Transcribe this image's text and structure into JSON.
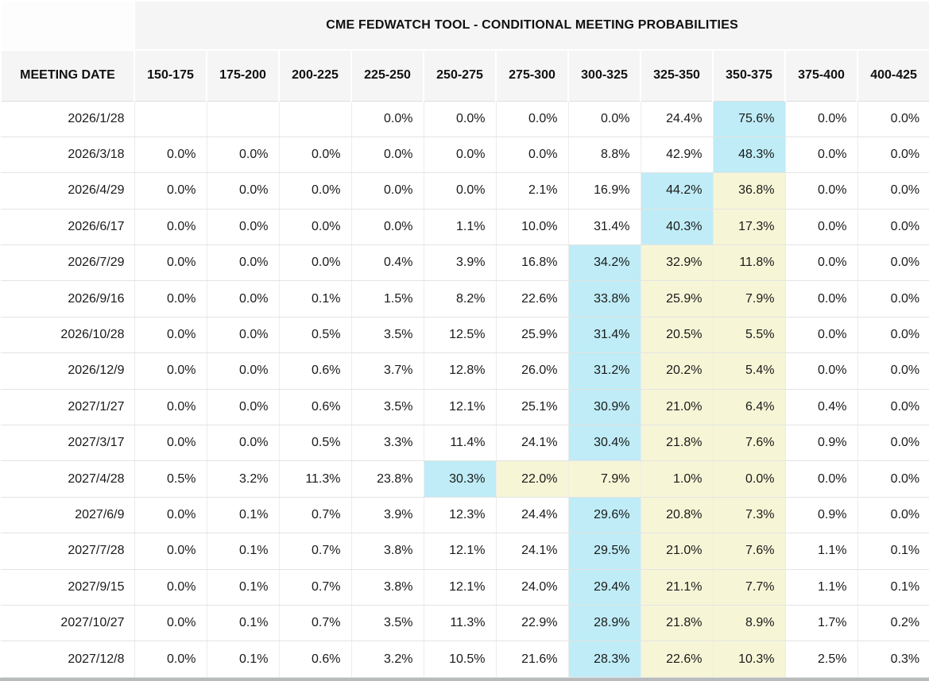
{
  "chart_data": {
    "type": "table",
    "title": "CME FEDWATCH TOOL - CONDITIONAL MEETING PROBABILITIES",
    "row_header": "MEETING DATE",
    "columns": [
      "150-175",
      "175-200",
      "200-225",
      "225-250",
      "250-275",
      "275-300",
      "300-325",
      "325-350",
      "350-375",
      "375-400",
      "400-425"
    ],
    "rows": [
      {
        "date": "2026/1/28",
        "values": [
          "",
          "",
          "",
          "0.0%",
          "0.0%",
          "0.0%",
          "0.0%",
          "24.4%",
          "75.6%",
          "0.0%",
          "0.0%"
        ],
        "cyan": [
          8
        ],
        "yellow": []
      },
      {
        "date": "2026/3/18",
        "values": [
          "0.0%",
          "0.0%",
          "0.0%",
          "0.0%",
          "0.0%",
          "0.0%",
          "8.8%",
          "42.9%",
          "48.3%",
          "0.0%",
          "0.0%"
        ],
        "cyan": [
          8
        ],
        "yellow": []
      },
      {
        "date": "2026/4/29",
        "values": [
          "0.0%",
          "0.0%",
          "0.0%",
          "0.0%",
          "0.0%",
          "2.1%",
          "16.9%",
          "44.2%",
          "36.8%",
          "0.0%",
          "0.0%"
        ],
        "cyan": [
          7
        ],
        "yellow": [
          8
        ]
      },
      {
        "date": "2026/6/17",
        "values": [
          "0.0%",
          "0.0%",
          "0.0%",
          "0.0%",
          "1.1%",
          "10.0%",
          "31.4%",
          "40.3%",
          "17.3%",
          "0.0%",
          "0.0%"
        ],
        "cyan": [
          7
        ],
        "yellow": [
          8
        ]
      },
      {
        "date": "2026/7/29",
        "values": [
          "0.0%",
          "0.0%",
          "0.0%",
          "0.4%",
          "3.9%",
          "16.8%",
          "34.2%",
          "32.9%",
          "11.8%",
          "0.0%",
          "0.0%"
        ],
        "cyan": [
          6
        ],
        "yellow": [
          7,
          8
        ]
      },
      {
        "date": "2026/9/16",
        "values": [
          "0.0%",
          "0.0%",
          "0.1%",
          "1.5%",
          "8.2%",
          "22.6%",
          "33.8%",
          "25.9%",
          "7.9%",
          "0.0%",
          "0.0%"
        ],
        "cyan": [
          6
        ],
        "yellow": [
          7,
          8
        ]
      },
      {
        "date": "2026/10/28",
        "values": [
          "0.0%",
          "0.0%",
          "0.5%",
          "3.5%",
          "12.5%",
          "25.9%",
          "31.4%",
          "20.5%",
          "5.5%",
          "0.0%",
          "0.0%"
        ],
        "cyan": [
          6
        ],
        "yellow": [
          7,
          8
        ]
      },
      {
        "date": "2026/12/9",
        "values": [
          "0.0%",
          "0.0%",
          "0.6%",
          "3.7%",
          "12.8%",
          "26.0%",
          "31.2%",
          "20.2%",
          "5.4%",
          "0.0%",
          "0.0%"
        ],
        "cyan": [
          6
        ],
        "yellow": [
          7,
          8
        ]
      },
      {
        "date": "2027/1/27",
        "values": [
          "0.0%",
          "0.0%",
          "0.6%",
          "3.5%",
          "12.1%",
          "25.1%",
          "30.9%",
          "21.0%",
          "6.4%",
          "0.4%",
          "0.0%"
        ],
        "cyan": [
          6
        ],
        "yellow": [
          7,
          8
        ]
      },
      {
        "date": "2027/3/17",
        "values": [
          "0.0%",
          "0.0%",
          "0.5%",
          "3.3%",
          "11.4%",
          "24.1%",
          "30.4%",
          "21.8%",
          "7.6%",
          "0.9%",
          "0.0%"
        ],
        "cyan": [
          6
        ],
        "yellow": [
          7,
          8
        ]
      },
      {
        "date": "2027/4/28",
        "values": [
          "0.5%",
          "3.2%",
          "11.3%",
          "23.8%",
          "30.3%",
          "22.0%",
          "7.9%",
          "1.0%",
          "0.0%",
          "0.0%",
          "0.0%"
        ],
        "cyan": [
          4
        ],
        "yellow": [
          5,
          6,
          7,
          8
        ]
      },
      {
        "date": "2027/6/9",
        "values": [
          "0.0%",
          "0.1%",
          "0.7%",
          "3.9%",
          "12.3%",
          "24.4%",
          "29.6%",
          "20.8%",
          "7.3%",
          "0.9%",
          "0.0%"
        ],
        "cyan": [
          6
        ],
        "yellow": [
          7,
          8
        ]
      },
      {
        "date": "2027/7/28",
        "values": [
          "0.0%",
          "0.1%",
          "0.7%",
          "3.8%",
          "12.1%",
          "24.1%",
          "29.5%",
          "21.0%",
          "7.6%",
          "1.1%",
          "0.1%"
        ],
        "cyan": [
          6
        ],
        "yellow": [
          7,
          8
        ]
      },
      {
        "date": "2027/9/15",
        "values": [
          "0.0%",
          "0.1%",
          "0.7%",
          "3.8%",
          "12.1%",
          "24.0%",
          "29.4%",
          "21.1%",
          "7.7%",
          "1.1%",
          "0.1%"
        ],
        "cyan": [
          6
        ],
        "yellow": [
          7,
          8
        ]
      },
      {
        "date": "2027/10/27",
        "values": [
          "0.0%",
          "0.1%",
          "0.7%",
          "3.5%",
          "11.3%",
          "22.9%",
          "28.9%",
          "21.8%",
          "8.9%",
          "1.7%",
          "0.2%"
        ],
        "cyan": [
          6
        ],
        "yellow": [
          7,
          8
        ]
      },
      {
        "date": "2027/12/8",
        "values": [
          "0.0%",
          "0.1%",
          "0.6%",
          "3.2%",
          "10.5%",
          "21.6%",
          "28.3%",
          "22.6%",
          "10.3%",
          "2.5%",
          "0.3%"
        ],
        "cyan": [
          6
        ],
        "yellow": [
          7,
          8
        ]
      }
    ],
    "layout_hints": {
      "highlight_cyan_meaning": "highest probability in row",
      "highlight_yellow_meaning": "cells between highest-probability cell and 350-375 column"
    }
  },
  "colors": {
    "header_bg": "#f5f5f5",
    "row_bg": "#ffffff",
    "grid_line": "#e3e3e3",
    "highlight_cyan": "#bfecf6",
    "highlight_yellow": "#f6f6d7",
    "bottom_bar": "#b9bcbc",
    "text": "#1a1a1a"
  }
}
